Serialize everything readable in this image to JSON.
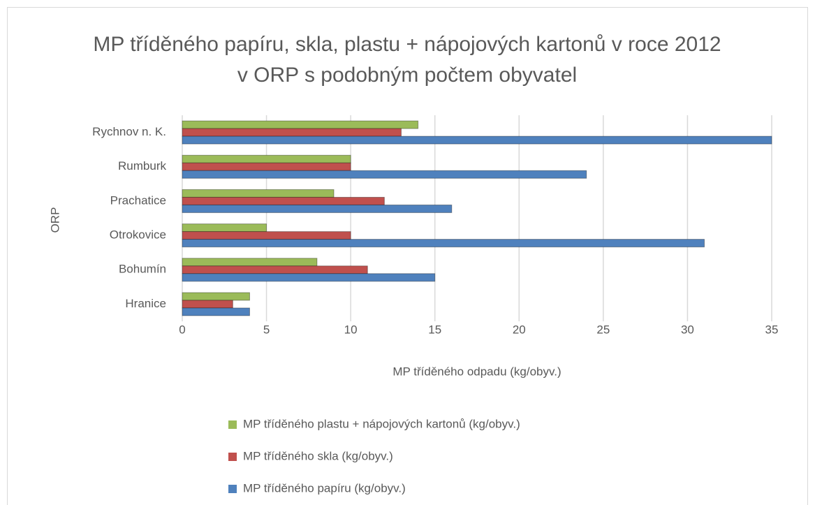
{
  "chart_data": {
    "type": "barh",
    "title": "MP tříděného papíru, skla, plastu + nápojových kartonů v roce 2012 v ORP s podobným počtem obyvatel",
    "xlabel": "MP tříděného odpadu (kg/obyv.)",
    "ylabel": "ORP",
    "categories": [
      "Hranice",
      "Bohumín",
      "Otrokovice",
      "Prachatice",
      "Rumburk",
      "Rychnov n. K."
    ],
    "series": [
      {
        "name": "MP tříděného plastu + nápojových kartonů (kg/obyv.)",
        "color": "#9bbb59",
        "values": [
          4,
          8,
          5,
          9,
          10,
          14
        ]
      },
      {
        "name": "MP tříděného skla (kg/obyv.)",
        "color": "#c0504d",
        "values": [
          3,
          11,
          10,
          12,
          10,
          13
        ]
      },
      {
        "name": "MP tříděného papíru (kg/obyv.)",
        "color": "#4f81bd",
        "values": [
          4,
          15,
          31,
          16,
          24,
          35
        ]
      }
    ],
    "xlim": [
      0,
      35
    ],
    "xticks": [
      0,
      5,
      10,
      15,
      20,
      25,
      30,
      35
    ],
    "grid": true,
    "legend": "bottom"
  }
}
